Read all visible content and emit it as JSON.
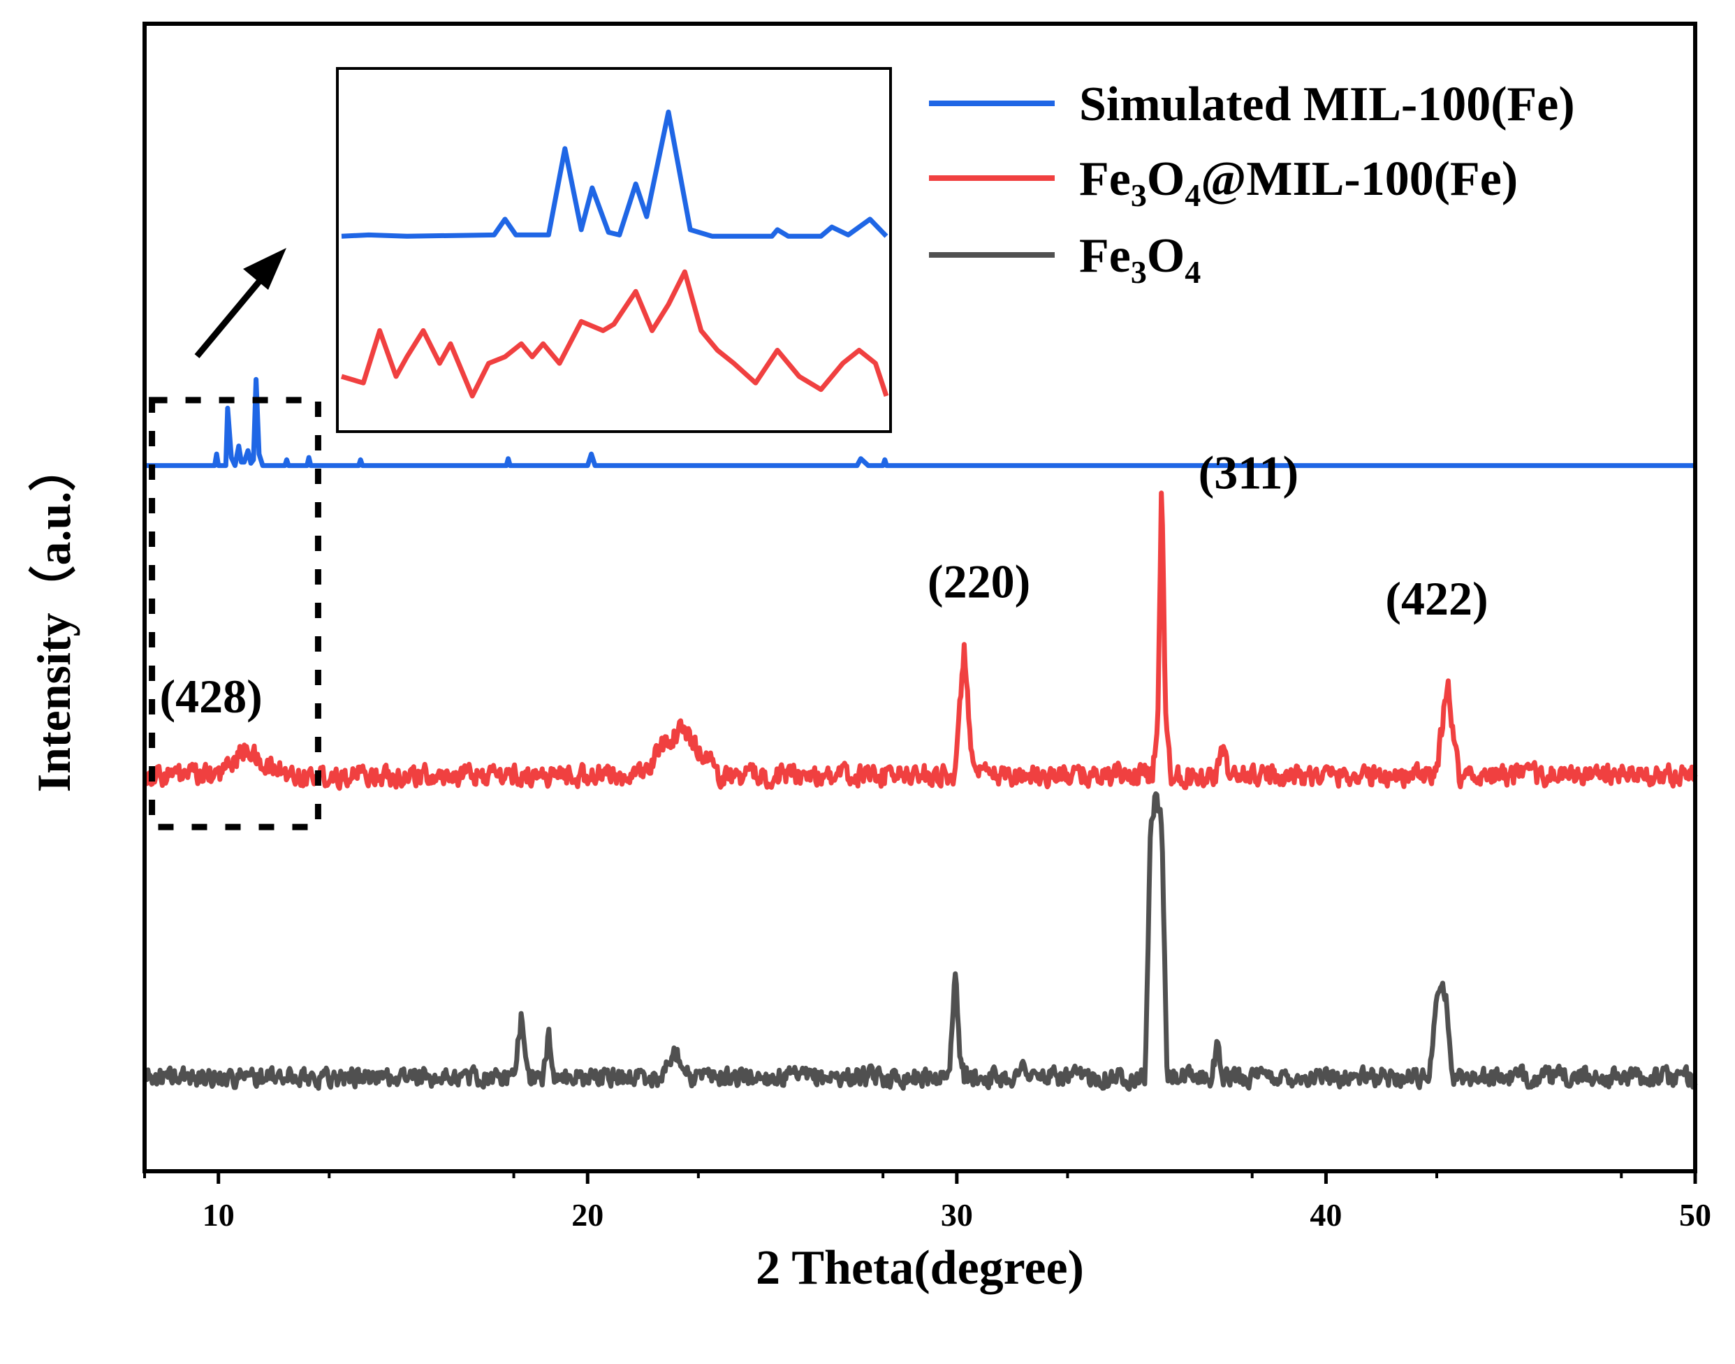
{
  "chart_data": {
    "type": "line",
    "title": "",
    "xlabel": "2 Theta(degree)",
    "ylabel": "Intensity（a.u.）",
    "xlim": [
      8,
      50
    ],
    "x_ticks": [
      10,
      20,
      30,
      40,
      50
    ],
    "y_ticks_shown": false,
    "grid": false,
    "legend_position": "top-right",
    "colors": {
      "simulated": "#1f66e5",
      "composite": "#f04040",
      "fe3o4": "#505050",
      "frame": "#000000"
    },
    "series": [
      {
        "id": "simulated",
        "name": "Simulated MIL-100(Fe)",
        "legend_parts": [
          "Simulated MIL-100(Fe)"
        ],
        "legend_subs": [],
        "baseline": 0.615,
        "noise": 0.0,
        "points": [
          [
            8.0,
            0.615
          ],
          [
            9.9,
            0.615
          ],
          [
            9.95,
            0.625
          ],
          [
            10.0,
            0.615
          ],
          [
            10.2,
            0.615
          ],
          [
            10.25,
            0.665
          ],
          [
            10.35,
            0.622
          ],
          [
            10.45,
            0.615
          ],
          [
            10.55,
            0.632
          ],
          [
            10.62,
            0.618
          ],
          [
            10.7,
            0.618
          ],
          [
            10.8,
            0.628
          ],
          [
            10.88,
            0.617
          ],
          [
            10.95,
            0.62
          ],
          [
            11.02,
            0.69
          ],
          [
            11.1,
            0.625
          ],
          [
            11.2,
            0.615
          ],
          [
            11.8,
            0.615
          ],
          [
            11.85,
            0.62
          ],
          [
            11.9,
            0.615
          ],
          [
            12.4,
            0.615
          ],
          [
            12.45,
            0.622
          ],
          [
            12.5,
            0.615
          ],
          [
            13.8,
            0.615
          ],
          [
            13.85,
            0.62
          ],
          [
            13.9,
            0.615
          ],
          [
            17.8,
            0.615
          ],
          [
            17.85,
            0.621
          ],
          [
            17.9,
            0.615
          ],
          [
            20.0,
            0.615
          ],
          [
            20.1,
            0.625
          ],
          [
            20.2,
            0.615
          ],
          [
            27.3,
            0.615
          ],
          [
            27.4,
            0.621
          ],
          [
            27.6,
            0.615
          ],
          [
            28.0,
            0.615
          ],
          [
            28.05,
            0.62
          ],
          [
            28.1,
            0.615
          ],
          [
            50.0,
            0.615
          ]
        ],
        "inset_points": [
          [
            0.0,
            0.05
          ],
          [
            0.05,
            0.06
          ],
          [
            0.12,
            0.05
          ],
          [
            0.28,
            0.06
          ],
          [
            0.3,
            0.18
          ],
          [
            0.32,
            0.06
          ],
          [
            0.38,
            0.06
          ],
          [
            0.41,
            0.72
          ],
          [
            0.44,
            0.1
          ],
          [
            0.46,
            0.42
          ],
          [
            0.49,
            0.08
          ],
          [
            0.51,
            0.06
          ],
          [
            0.54,
            0.45
          ],
          [
            0.56,
            0.2
          ],
          [
            0.6,
            1.0
          ],
          [
            0.64,
            0.1
          ],
          [
            0.68,
            0.05
          ],
          [
            0.79,
            0.05
          ],
          [
            0.8,
            0.1
          ],
          [
            0.82,
            0.05
          ],
          [
            0.88,
            0.05
          ],
          [
            0.9,
            0.12
          ],
          [
            0.93,
            0.06
          ],
          [
            0.97,
            0.18
          ],
          [
            1.0,
            0.05
          ]
        ]
      },
      {
        "id": "composite",
        "name": "Fe3O4@MIL-100(Fe)",
        "legend_parts": [
          "Fe",
          "3",
          "O",
          "4",
          "@MIL-100(Fe)"
        ],
        "legend_subs": [
          false,
          true,
          false,
          true,
          false
        ],
        "baseline": 0.345,
        "noise": 0.009,
        "points": [
          [
            8.0,
            0.345
          ],
          [
            10.0,
            0.345
          ],
          [
            10.8,
            0.37
          ],
          [
            11.1,
            0.355
          ],
          [
            12.0,
            0.345
          ],
          [
            21.5,
            0.345
          ],
          [
            22.0,
            0.37
          ],
          [
            22.5,
            0.385
          ],
          [
            23.0,
            0.37
          ],
          [
            23.6,
            0.345
          ],
          [
            29.9,
            0.345
          ],
          [
            30.0,
            0.36
          ],
          [
            30.2,
            0.46
          ],
          [
            30.4,
            0.36
          ],
          [
            30.5,
            0.345
          ],
          [
            35.3,
            0.345
          ],
          [
            35.45,
            0.4
          ],
          [
            35.55,
            0.612
          ],
          [
            35.65,
            0.4
          ],
          [
            35.8,
            0.345
          ],
          [
            37.0,
            0.345
          ],
          [
            37.2,
            0.365
          ],
          [
            37.4,
            0.345
          ],
          [
            43.0,
            0.345
          ],
          [
            43.15,
            0.39
          ],
          [
            43.3,
            0.43
          ],
          [
            43.45,
            0.38
          ],
          [
            43.6,
            0.345
          ],
          [
            50.0,
            0.345
          ]
        ],
        "inset_points": [
          [
            0.0,
            0.2
          ],
          [
            0.04,
            0.15
          ],
          [
            0.07,
            0.55
          ],
          [
            0.1,
            0.2
          ],
          [
            0.12,
            0.35
          ],
          [
            0.15,
            0.55
          ],
          [
            0.18,
            0.3
          ],
          [
            0.2,
            0.45
          ],
          [
            0.24,
            0.05
          ],
          [
            0.27,
            0.3
          ],
          [
            0.3,
            0.35
          ],
          [
            0.33,
            0.45
          ],
          [
            0.35,
            0.35
          ],
          [
            0.37,
            0.45
          ],
          [
            0.4,
            0.3
          ],
          [
            0.44,
            0.62
          ],
          [
            0.48,
            0.55
          ],
          [
            0.5,
            0.6
          ],
          [
            0.54,
            0.85
          ],
          [
            0.57,
            0.55
          ],
          [
            0.6,
            0.75
          ],
          [
            0.63,
            1.0
          ],
          [
            0.66,
            0.55
          ],
          [
            0.69,
            0.4
          ],
          [
            0.72,
            0.3
          ],
          [
            0.76,
            0.15
          ],
          [
            0.8,
            0.4
          ],
          [
            0.84,
            0.2
          ],
          [
            0.88,
            0.1
          ],
          [
            0.92,
            0.3
          ],
          [
            0.95,
            0.4
          ],
          [
            0.98,
            0.3
          ],
          [
            1.0,
            0.05
          ]
        ]
      },
      {
        "id": "fe3o4",
        "name": "Fe3O4",
        "legend_parts": [
          "Fe",
          "3",
          "O",
          "4"
        ],
        "legend_subs": [
          false,
          true,
          false,
          true
        ],
        "baseline": 0.082,
        "noise": 0.008,
        "points": [
          [
            8.0,
            0.082
          ],
          [
            18.0,
            0.082
          ],
          [
            18.2,
            0.135
          ],
          [
            18.4,
            0.082
          ],
          [
            18.8,
            0.082
          ],
          [
            18.95,
            0.12
          ],
          [
            19.1,
            0.082
          ],
          [
            22.0,
            0.082
          ],
          [
            22.4,
            0.105
          ],
          [
            22.8,
            0.082
          ],
          [
            29.8,
            0.082
          ],
          [
            29.95,
            0.18
          ],
          [
            30.1,
            0.095
          ],
          [
            30.2,
            0.082
          ],
          [
            31.7,
            0.082
          ],
          [
            31.8,
            0.105
          ],
          [
            31.9,
            0.082
          ],
          [
            35.1,
            0.082
          ],
          [
            35.25,
            0.3
          ],
          [
            35.4,
            0.33
          ],
          [
            35.55,
            0.3
          ],
          [
            35.7,
            0.082
          ],
          [
            36.9,
            0.082
          ],
          [
            37.05,
            0.11
          ],
          [
            37.2,
            0.082
          ],
          [
            42.8,
            0.082
          ],
          [
            43.0,
            0.16
          ],
          [
            43.25,
            0.155
          ],
          [
            43.4,
            0.082
          ],
          [
            50.0,
            0.082
          ]
        ],
        "inset_points": []
      }
    ],
    "annotations": [
      {
        "text": "(428)",
        "x": 9.8,
        "y": 0.4
      },
      {
        "text": "(220)",
        "x": 30.6,
        "y": 0.5
      },
      {
        "text": "(311)",
        "x": 37.9,
        "y": 0.595
      },
      {
        "text": "(422)",
        "x": 43.0,
        "y": 0.485
      }
    ],
    "zoom_region": {
      "x": [
        8.2,
        12.7
      ],
      "y": [
        0.3,
        0.672
      ]
    }
  }
}
